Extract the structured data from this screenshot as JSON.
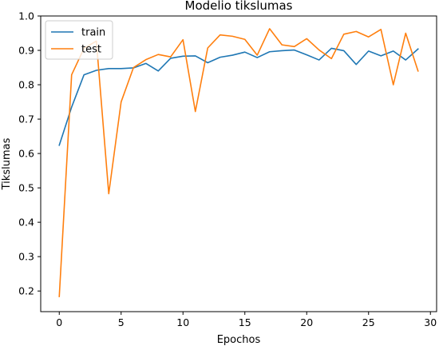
{
  "chart_data": {
    "type": "line",
    "title": "Modelio tikslumas",
    "xlabel": "Epochos",
    "ylabel": "Tikslumas",
    "xlim": [
      -1.5,
      30.5
    ],
    "ylim": [
      0.14,
      1.0
    ],
    "xticks": [
      0,
      5,
      10,
      15,
      20,
      25,
      30
    ],
    "yticks": [
      0.2,
      0.3,
      0.4,
      0.5,
      0.6,
      0.7,
      0.8,
      0.9,
      1.0
    ],
    "grid": false,
    "legend_position": "upper-left",
    "x": [
      0,
      1,
      2,
      3,
      4,
      5,
      6,
      7,
      8,
      9,
      10,
      11,
      12,
      13,
      14,
      15,
      16,
      17,
      18,
      19,
      20,
      21,
      22,
      23,
      24,
      25,
      26,
      27,
      28,
      29
    ],
    "series": [
      {
        "name": "train",
        "color": "#1f77b4",
        "values": [
          0.624,
          0.735,
          0.829,
          0.842,
          0.847,
          0.847,
          0.849,
          0.862,
          0.84,
          0.877,
          0.883,
          0.884,
          0.864,
          0.88,
          0.886,
          0.895,
          0.879,
          0.896,
          0.899,
          0.901,
          0.887,
          0.872,
          0.906,
          0.899,
          0.859,
          0.898,
          0.884,
          0.898,
          0.872,
          0.904
        ]
      },
      {
        "name": "test",
        "color": "#ff7f0e",
        "values": [
          0.184,
          0.829,
          0.906,
          0.927,
          0.483,
          0.75,
          0.85,
          0.873,
          0.888,
          0.881,
          0.931,
          0.722,
          0.907,
          0.945,
          0.941,
          0.932,
          0.886,
          0.963,
          0.916,
          0.911,
          0.934,
          0.901,
          0.876,
          0.947,
          0.955,
          0.939,
          0.961,
          0.8,
          0.95,
          0.84
        ]
      }
    ]
  }
}
